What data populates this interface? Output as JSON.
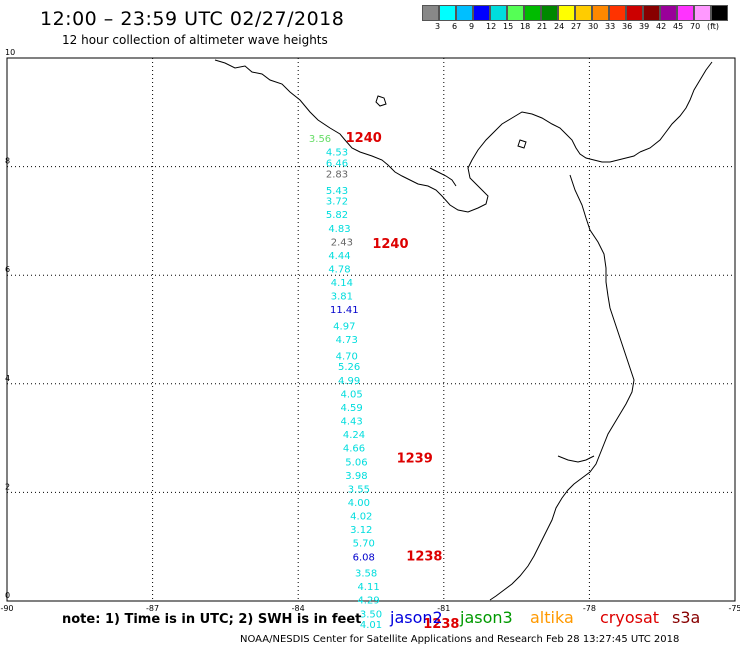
{
  "header": {
    "title": "12:00 – 23:59 UTC 02/27/2018",
    "subtitle": "12 hour collection of altimeter wave heights"
  },
  "colorbar": {
    "colors": [
      "#888888",
      "#00ffff",
      "#00bfff",
      "#0000ff",
      "#00dddd",
      "#55ff55",
      "#00bb00",
      "#008800",
      "#ffff00",
      "#ffcc00",
      "#ff8800",
      "#ff3300",
      "#cc0000",
      "#880000",
      "#990099",
      "#ff33ff",
      "#ff99ff",
      "#000000"
    ],
    "labels": [
      "3",
      "6",
      "9",
      "12",
      "15",
      "18",
      "21",
      "24",
      "27",
      "30",
      "33",
      "36",
      "39",
      "42",
      "45",
      "70",
      "(ft)"
    ]
  },
  "map": {
    "x_ticks": [
      {
        "value": -90,
        "label": "-90"
      },
      {
        "value": -87,
        "label": "-87"
      },
      {
        "value": -84,
        "label": "-84"
      },
      {
        "value": -81,
        "label": "-81"
      },
      {
        "value": -78,
        "label": "-78"
      },
      {
        "value": -75,
        "label": "-75"
      }
    ],
    "y_ticks": [
      {
        "value": 0,
        "label": "0"
      },
      {
        "value": 2,
        "label": "2"
      },
      {
        "value": 4,
        "label": "4"
      },
      {
        "value": 6,
        "label": "6"
      },
      {
        "value": 8,
        "label": "8"
      },
      {
        "value": 10,
        "label": "10"
      }
    ],
    "xlim": [
      -90,
      -75
    ],
    "ylim": [
      0,
      10
    ],
    "grid": "dotted",
    "wave_color_cyan": "#00dddd",
    "wave_color_gray": "#666666",
    "wave_color_blue": "#0000cc",
    "wave_color_green": "#66dd66",
    "time_label_color": "#dd0000"
  },
  "observations": [
    {
      "lon": -83.55,
      "lat": 8.45,
      "value": "3.56",
      "color": "#66dd66"
    },
    {
      "lon": -83.2,
      "lat": 8.2,
      "value": "4.53",
      "color": "#00dddd"
    },
    {
      "lon": -83.2,
      "lat": 8.0,
      "value": "6.46",
      "color": "#00dddd"
    },
    {
      "lon": -83.2,
      "lat": 7.8,
      "value": "2.83",
      "color": "#666666"
    },
    {
      "lon": -83.2,
      "lat": 7.5,
      "value": "5.43",
      "color": "#00dddd"
    },
    {
      "lon": -83.2,
      "lat": 7.3,
      "value": "3.72",
      "color": "#00dddd"
    },
    {
      "lon": -83.2,
      "lat": 7.05,
      "value": "5.82",
      "color": "#00dddd"
    },
    {
      "lon": -83.15,
      "lat": 6.8,
      "value": "4.83",
      "color": "#00dddd"
    },
    {
      "lon": -83.1,
      "lat": 6.55,
      "value": "2.43",
      "color": "#666666"
    },
    {
      "lon": -83.15,
      "lat": 6.3,
      "value": "4.44",
      "color": "#00dddd"
    },
    {
      "lon": -83.15,
      "lat": 6.05,
      "value": "4.78",
      "color": "#00dddd"
    },
    {
      "lon": -83.1,
      "lat": 5.8,
      "value": "4.14",
      "color": "#00dddd"
    },
    {
      "lon": -83.1,
      "lat": 5.55,
      "value": "3.81",
      "color": "#00dddd"
    },
    {
      "lon": -83.05,
      "lat": 5.3,
      "value": "11.41",
      "color": "#0000cc"
    },
    {
      "lon": -83.05,
      "lat": 5.0,
      "value": "4.97",
      "color": "#00dddd"
    },
    {
      "lon": -83.0,
      "lat": 4.75,
      "value": "4.73",
      "color": "#00dddd"
    },
    {
      "lon": -83.0,
      "lat": 4.45,
      "value": "4.70",
      "color": "#00dddd"
    },
    {
      "lon": -82.95,
      "lat": 4.25,
      "value": "5.26",
      "color": "#00dddd"
    },
    {
      "lon": -82.95,
      "lat": 4.0,
      "value": "4.99",
      "color": "#00dddd"
    },
    {
      "lon": -82.9,
      "lat": 3.75,
      "value": "4.05",
      "color": "#00dddd"
    },
    {
      "lon": -82.9,
      "lat": 3.5,
      "value": "4.59",
      "color": "#00dddd"
    },
    {
      "lon": -82.9,
      "lat": 3.25,
      "value": "4.43",
      "color": "#00dddd"
    },
    {
      "lon": -82.85,
      "lat": 3.0,
      "value": "4.24",
      "color": "#00dddd"
    },
    {
      "lon": -82.85,
      "lat": 2.75,
      "value": "4.66",
      "color": "#00dddd"
    },
    {
      "lon": -82.8,
      "lat": 2.5,
      "value": "5.06",
      "color": "#00dddd"
    },
    {
      "lon": -82.8,
      "lat": 2.25,
      "value": "3.98",
      "color": "#00dddd"
    },
    {
      "lon": -82.75,
      "lat": 2.0,
      "value": "3.55",
      "color": "#00dddd"
    },
    {
      "lon": -82.75,
      "lat": 1.75,
      "value": "4.00",
      "color": "#00dddd"
    },
    {
      "lon": -82.7,
      "lat": 1.5,
      "value": "4.02",
      "color": "#00dddd"
    },
    {
      "lon": -82.7,
      "lat": 1.25,
      "value": "3.12",
      "color": "#00dddd"
    },
    {
      "lon": -82.65,
      "lat": 1.0,
      "value": "5.70",
      "color": "#00dddd"
    },
    {
      "lon": -82.65,
      "lat": 0.75,
      "value": "6.08",
      "color": "#0000cc"
    },
    {
      "lon": -82.6,
      "lat": 0.45,
      "value": "3.58",
      "color": "#00dddd"
    },
    {
      "lon": -82.55,
      "lat": 0.2,
      "value": "4.11",
      "color": "#00dddd"
    },
    {
      "lon": -82.55,
      "lat": -0.05,
      "value": "4.29",
      "color": "#00dddd"
    },
    {
      "lon": -82.5,
      "lat": -0.3,
      "value": "3.50",
      "color": "#00dddd"
    },
    {
      "lon": -82.5,
      "lat": -0.5,
      "value": "4.01",
      "color": "#00dddd"
    }
  ],
  "time_labels": [
    {
      "lon": -82.65,
      "lat": 8.45,
      "text": "1240"
    },
    {
      "lon": -82.1,
      "lat": 6.5,
      "text": "1240"
    },
    {
      "lon": -81.6,
      "lat": 2.55,
      "text": "1239"
    },
    {
      "lon": -81.4,
      "lat": 0.75,
      "text": "1238"
    },
    {
      "lon": -81.05,
      "lat": -0.5,
      "text": "1238"
    }
  ],
  "legend": {
    "note": "note:  1) Time is in UTC;  2) SWH is in feet",
    "satellites": [
      {
        "name": "jason2",
        "color": "#0000dd"
      },
      {
        "name": "jason3",
        "color": "#009900"
      },
      {
        "name": "altika",
        "color": "#ff9900"
      },
      {
        "name": "cryosat",
        "color": "#dd0000"
      },
      {
        "name": "s3a",
        "color": "#880000"
      }
    ]
  },
  "footer": {
    "credit": "NOAA/NESDIS Center for Satellite Applications and Research    Feb 28 13:27:45 UTC 2018"
  }
}
